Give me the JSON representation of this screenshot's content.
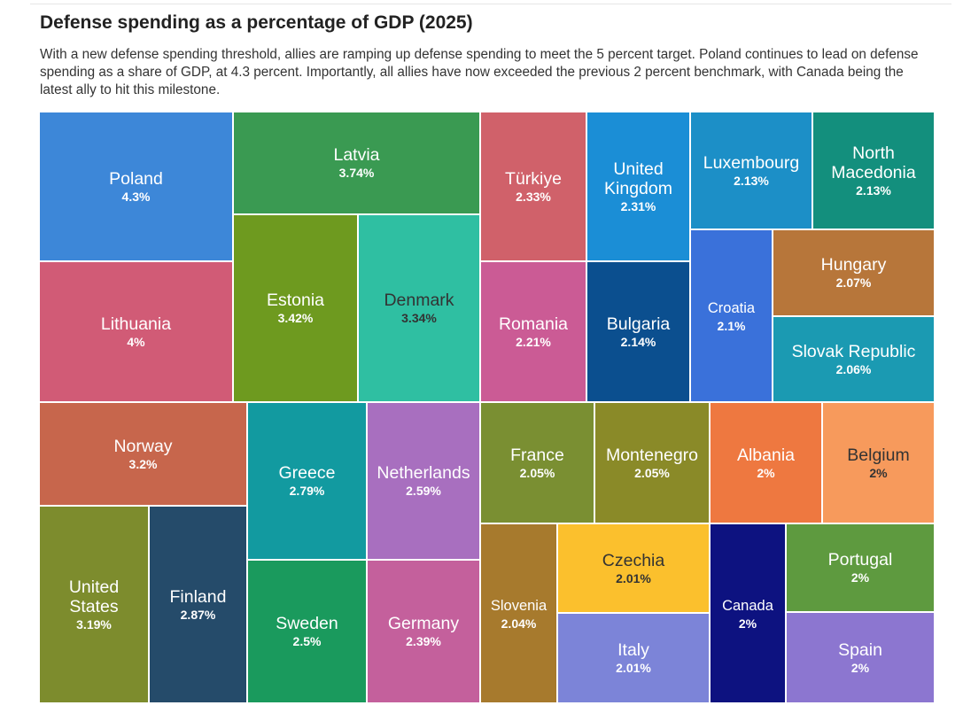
{
  "header": {
    "title": "Defense spending as a percentage of GDP (2025)",
    "subtitle": "With a new defense spending threshold, allies are ramping up defense spending to meet the 5 percent target. Poland continues to lead on defense spending as a share of GDP, at 4.3 percent. Importantly, all allies have now exceeded the previous 2 percent benchmark, with Canada being the latest ally to hit this milestone."
  },
  "chart_data": {
    "type": "treemap",
    "title": "Defense spending as a percentage of GDP (2025)",
    "unit": "%",
    "items": [
      {
        "name": "Poland",
        "value": 4.3,
        "label": "4.3%",
        "color": "#3d87d8"
      },
      {
        "name": "Latvia",
        "value": 3.74,
        "label": "3.74%",
        "color": "#3a9a52"
      },
      {
        "name": "Türkiye",
        "value": 2.33,
        "label": "2.33%",
        "color": "#d0616a"
      },
      {
        "name": "United Kingdom",
        "value": 2.31,
        "label": "2.31%",
        "color": "#1b8ed6"
      },
      {
        "name": "Luxembourg",
        "value": 2.13,
        "label": "2.13%",
        "color": "#1c8fc7"
      },
      {
        "name": "North Macedonia",
        "value": 2.13,
        "label": "2.13%",
        "color": "#138f7d"
      },
      {
        "name": "Lithuania",
        "value": 4,
        "label": "4%",
        "color": "#d15b76"
      },
      {
        "name": "Estonia",
        "value": 3.42,
        "label": "3.42%",
        "color": "#6e9a1f"
      },
      {
        "name": "Denmark",
        "value": 3.34,
        "label": "3.34%",
        "color": "#2fbfa2",
        "dark": true
      },
      {
        "name": "Romania",
        "value": 2.21,
        "label": "2.21%",
        "color": "#cb5b95"
      },
      {
        "name": "Bulgaria",
        "value": 2.14,
        "label": "2.14%",
        "color": "#0b4f8f"
      },
      {
        "name": "Croatia",
        "value": 2.1,
        "label": "2.1%",
        "color": "#3a71da"
      },
      {
        "name": "Hungary",
        "value": 2.07,
        "label": "2.07%",
        "color": "#b7763a"
      },
      {
        "name": "Slovak Republic",
        "value": 2.06,
        "label": "2.06%",
        "color": "#1b9ab2"
      },
      {
        "name": "Norway",
        "value": 3.2,
        "label": "3.2%",
        "color": "#c7664c"
      },
      {
        "name": "Greece",
        "value": 2.79,
        "label": "2.79%",
        "color": "#129aa0"
      },
      {
        "name": "Netherlands",
        "value": 2.59,
        "label": "2.59%",
        "color": "#a86fbf"
      },
      {
        "name": "France",
        "value": 2.05,
        "label": "2.05%",
        "color": "#7a8f32"
      },
      {
        "name": "Montenegro",
        "value": 2.05,
        "label": "2.05%",
        "color": "#8a8a28"
      },
      {
        "name": "Albania",
        "value": 2,
        "label": "2%",
        "color": "#ee7840"
      },
      {
        "name": "Belgium",
        "value": 2,
        "label": "2%",
        "color": "#f79a5c",
        "dark": true
      },
      {
        "name": "United States",
        "value": 3.19,
        "label": "3.19%",
        "color": "#7d8c2d"
      },
      {
        "name": "Finland",
        "value": 2.87,
        "label": "2.87%",
        "color": "#254b6a"
      },
      {
        "name": "Sweden",
        "value": 2.5,
        "label": "2.5%",
        "color": "#1a9a5d"
      },
      {
        "name": "Germany",
        "value": 2.39,
        "label": "2.39%",
        "color": "#c4609c"
      },
      {
        "name": "Slovenia",
        "value": 2.04,
        "label": "2.04%",
        "color": "#a77a2d"
      },
      {
        "name": "Czechia",
        "value": 2.01,
        "label": "2.01%",
        "color": "#fbc02d",
        "dark": true
      },
      {
        "name": "Italy",
        "value": 2.01,
        "label": "2.01%",
        "color": "#7c84d8"
      },
      {
        "name": "Canada",
        "value": 2,
        "label": "2%",
        "color": "#0d1280"
      },
      {
        "name": "Portugal",
        "value": 2,
        "label": "2%",
        "color": "#5e9a3f"
      },
      {
        "name": "Spain",
        "value": 2,
        "label": "2%",
        "color": "#8c76d0"
      }
    ]
  }
}
